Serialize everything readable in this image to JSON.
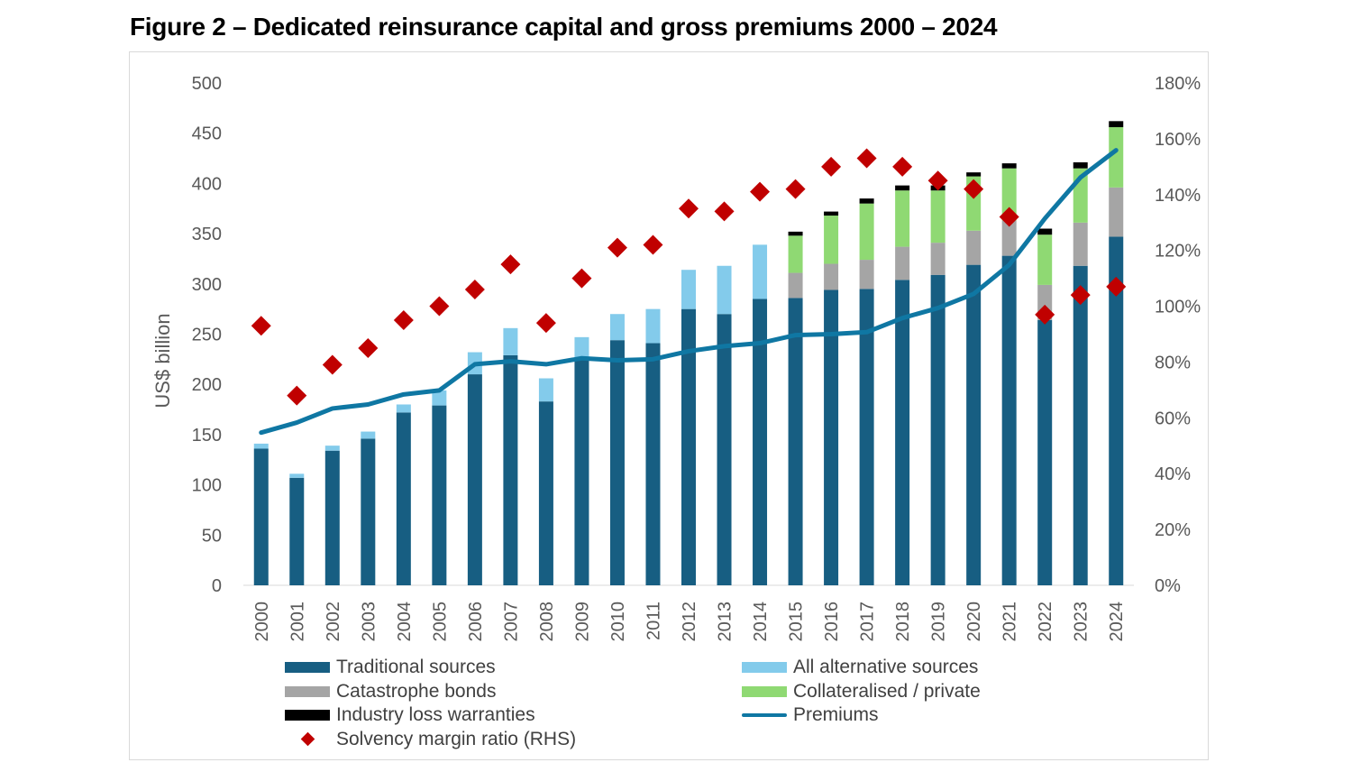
{
  "title": "Figure 2 – Dedicated reinsurance capital and gross premiums 2000 – 2024",
  "chart_data": {
    "type": "bar",
    "stacked": true,
    "title": "Figure 2 – Dedicated reinsurance capital and gross premiums 2000 – 2024",
    "ylabel": "US$ billion",
    "ylim": [
      0,
      500
    ],
    "yticks": [
      "0",
      "50",
      "100",
      "150",
      "200",
      "250",
      "300",
      "350",
      "400",
      "450",
      "500"
    ],
    "y2lim": [
      0,
      180
    ],
    "y2ticks": [
      "0%",
      "20%",
      "40%",
      "60%",
      "80%",
      "100%",
      "120%",
      "140%",
      "160%",
      "180%"
    ],
    "grid": false,
    "legend_placement": "bottom",
    "categories": [
      "2000",
      "2001",
      "2002",
      "2003",
      "2004",
      "2005",
      "2006",
      "2007",
      "2008",
      "2009",
      "2010",
      "2011",
      "2012",
      "2013",
      "2014",
      "2015",
      "2016",
      "2017",
      "2018",
      "2019",
      "2020",
      "2021",
      "2022",
      "2023",
      "2024"
    ],
    "series": [
      {
        "name": "Traditional sources",
        "kind": "bar",
        "color": "#175e82",
        "values": [
          136,
          107,
          134,
          146,
          172,
          179,
          210,
          229,
          183,
          224,
          244,
          241,
          275,
          270,
          285,
          286,
          294,
          295,
          304,
          309,
          319,
          328,
          264,
          318,
          347
        ]
      },
      {
        "name": "All alternative sources",
        "kind": "bar",
        "color": "#83cbeb",
        "values": [
          5,
          4,
          5,
          7,
          8,
          15,
          22,
          27,
          23,
          23,
          26,
          34,
          39,
          48,
          54,
          null,
          null,
          null,
          null,
          null,
          null,
          null,
          null,
          null,
          null
        ]
      },
      {
        "name": "Catastrophe bonds",
        "kind": "bar",
        "color": "#a5a5a5",
        "values": [
          null,
          null,
          null,
          null,
          null,
          null,
          null,
          null,
          null,
          null,
          null,
          null,
          null,
          null,
          null,
          25,
          26,
          29,
          33,
          32,
          34,
          35,
          35,
          43,
          49
        ]
      },
      {
        "name": "Collateralised / private",
        "kind": "bar",
        "color": "#8fd973",
        "values": [
          null,
          null,
          null,
          null,
          null,
          null,
          null,
          null,
          null,
          null,
          null,
          null,
          null,
          null,
          null,
          37,
          48,
          56,
          56,
          52,
          54,
          52,
          50,
          54,
          60
        ]
      },
      {
        "name": "Industry loss warranties",
        "kind": "bar",
        "color": "#000000",
        "values": [
          null,
          null,
          null,
          null,
          null,
          null,
          null,
          null,
          null,
          null,
          null,
          null,
          null,
          null,
          null,
          4,
          4,
          5,
          5,
          5,
          4,
          5,
          6,
          6,
          6
        ]
      },
      {
        "name": "Premiums",
        "kind": "line",
        "color": "#0f77a3",
        "values": [
          152,
          162,
          176,
          180,
          190,
          194,
          220,
          223,
          220,
          226,
          224,
          225,
          233,
          238,
          241,
          249,
          250,
          252,
          266,
          276,
          290,
          319,
          365,
          406,
          433
        ]
      },
      {
        "name": "Solvency margin ratio (RHS)",
        "kind": "scatter",
        "axis": "right",
        "color": "#c00000",
        "values": [
          93,
          68,
          79,
          85,
          95,
          100,
          106,
          115,
          94,
          110,
          121,
          122,
          135,
          134,
          141,
          142,
          150,
          153,
          150,
          145,
          142,
          132,
          97,
          104,
          107
        ]
      }
    ]
  }
}
